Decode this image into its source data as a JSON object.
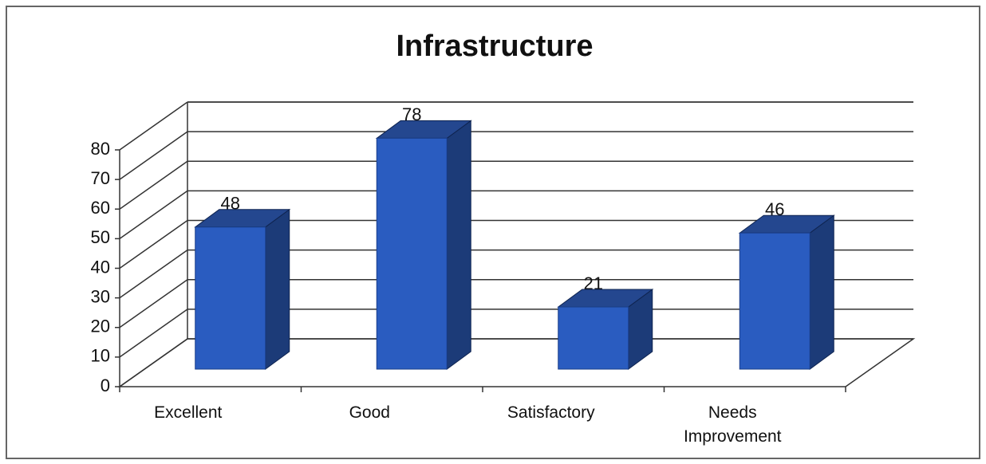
{
  "chart_data": {
    "type": "bar3d",
    "title": "Infrastructure",
    "categories": [
      "Excellent",
      "Good",
      "Satisfactory",
      "Needs Improvement"
    ],
    "values": [
      48,
      78,
      21,
      46
    ],
    "color": "#2a5cc0",
    "ylim": [
      0,
      80
    ],
    "yticks": [
      0,
      10,
      20,
      30,
      40,
      50,
      60,
      70,
      80
    ],
    "grid": true
  }
}
